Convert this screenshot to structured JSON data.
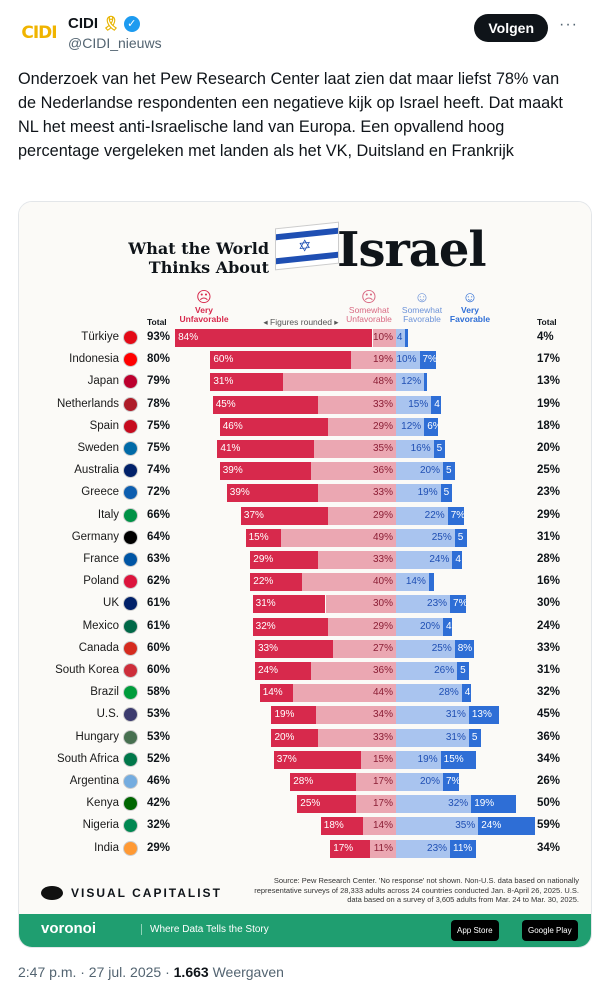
{
  "account": {
    "name": "CIDI",
    "handle": "@CIDI_nieuws",
    "logo_text": "CIDI",
    "follow_label": "Volgen",
    "more": "···"
  },
  "tweet_text": "Onderzoek van het Pew Research Center laat zien dat maar liefst 78% van de Nederlandse respondenten een negatieve kijk op Israel heeft. Dat maakt NL het meest anti-Israelische land van Europa. Een opvallend hoog percentage vergeleken met landen als het VK, Duitsland en Frankrijk",
  "infographic": {
    "title_small": "What the World Thinks About",
    "title_big": "Israel",
    "col_total": "Total",
    "col_very_unfav": "Very Unfavorable",
    "col_note": "◂ Figures rounded ▸",
    "col_some_unfav": "Somewhat Unfavorable",
    "col_some_fav": "Somewhat Favorable",
    "col_very_fav": "Very Favorable",
    "col_total_fav": "Total",
    "source": "Source: Pew Research Center. 'No response' not shown. Non-U.S. data based on nationally representative surveys of 28,333 adults across 24 countries conducted Jan. 8-April 26, 2025. U.S. data based on a survey of 3,605 adults from Mar. 24 to Mar. 30, 2025.",
    "brand": "VISUAL CAPITALIST",
    "footer_brand": "voronoi",
    "footer_tagline": "Where Data Tells the Story",
    "app_store": "App Store",
    "google_play": "Google Play"
  },
  "chart_data": {
    "type": "bar",
    "categories": [
      "Türkiye",
      "Indonesia",
      "Japan",
      "Netherlands",
      "Spain",
      "Sweden",
      "Australia",
      "Greece",
      "Italy",
      "Germany",
      "France",
      "Poland",
      "UK",
      "Mexico",
      "Canada",
      "South Korea",
      "Brazil",
      "U.S.",
      "Hungary",
      "South Africa",
      "Argentina",
      "Kenya",
      "Nigeria",
      "India"
    ],
    "unfavorable_total": [
      93,
      80,
      79,
      78,
      75,
      75,
      74,
      72,
      66,
      64,
      63,
      62,
      61,
      61,
      60,
      60,
      58,
      53,
      53,
      52,
      46,
      42,
      32,
      29
    ],
    "series": [
      {
        "name": "Very Unfavorable",
        "values": [
          84,
          60,
          31,
          45,
          46,
          41,
          39,
          39,
          37,
          15,
          29,
          22,
          31,
          32,
          33,
          24,
          14,
          19,
          20,
          37,
          28,
          25,
          18,
          17
        ]
      },
      {
        "name": "Somewhat Unfavorable",
        "values": [
          10,
          19,
          48,
          33,
          29,
          35,
          36,
          33,
          29,
          49,
          33,
          40,
          30,
          29,
          27,
          36,
          44,
          34,
          33,
          15,
          17,
          17,
          14,
          11
        ]
      },
      {
        "name": "Somewhat Favorable",
        "values": [
          4,
          10,
          12,
          15,
          12,
          16,
          20,
          19,
          22,
          25,
          24,
          14,
          23,
          20,
          25,
          26,
          28,
          31,
          31,
          19,
          20,
          32,
          35,
          23
        ]
      },
      {
        "name": "Very Favorable",
        "values": [
          1,
          7,
          1,
          4,
          6,
          5,
          5,
          5,
          7,
          5,
          4,
          2,
          7,
          4,
          8,
          5,
          4,
          13,
          5,
          15,
          7,
          19,
          24,
          11
        ]
      }
    ],
    "favorable_total": [
      4,
      17,
      13,
      19,
      18,
      20,
      25,
      23,
      29,
      31,
      28,
      16,
      30,
      24,
      33,
      31,
      32,
      45,
      36,
      34,
      26,
      50,
      59,
      34
    ],
    "flag_colors": [
      "#e30a17",
      "#ff0000",
      "#bc002d",
      "#ae1c28",
      "#c60b1e",
      "#006aa7",
      "#012169",
      "#0d5eaf",
      "#009246",
      "#000000",
      "#0055a4",
      "#dc143c",
      "#012169",
      "#006847",
      "#d52b1e",
      "#cd2e3a",
      "#009c3b",
      "#3c3b6e",
      "#477050",
      "#007749",
      "#74acdf",
      "#006600",
      "#008751",
      "#ff9933"
    ]
  },
  "meta": {
    "time": "2:47 p.m. · 27 jul. 2025 · ",
    "views": "1.663",
    "views_label": " Weergaven"
  }
}
